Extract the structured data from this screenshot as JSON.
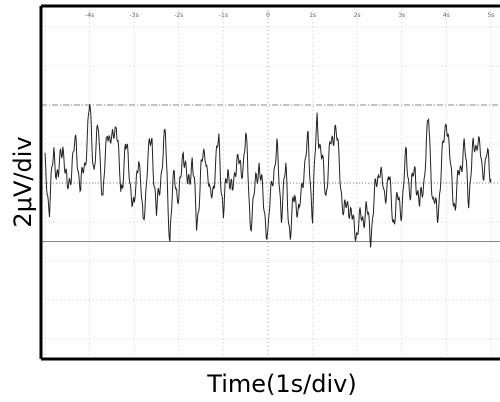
{
  "chart_data": {
    "type": "line",
    "title": "",
    "xlabel": "Time(1s/div)",
    "ylabel": "2μV/div",
    "x_tick_labels": [
      "-4s",
      "-3s",
      "-2s",
      "-1s",
      "0",
      "1s",
      "2s",
      "3s",
      "4s",
      "5s"
    ],
    "xlim": [
      -5,
      5
    ],
    "ylim": [
      -4,
      4
    ],
    "y_units": "div",
    "grid": true,
    "reference_levels": [
      {
        "y": 0,
        "style": "dotted"
      },
      {
        "y": 2,
        "style": "dash-dot"
      },
      {
        "y": -1.5,
        "style": "solid"
      }
    ],
    "series": [
      {
        "x": [
          -5.0,
          -4.9,
          -4.8,
          -4.7,
          -4.6,
          -4.5,
          -4.4,
          -4.3,
          -4.2,
          -4.1,
          -4.0,
          -3.9,
          -3.8,
          -3.7,
          -3.6,
          -3.5,
          -3.4,
          -3.3,
          -3.2,
          -3.1,
          -3.0,
          -2.9,
          -2.8,
          -2.7,
          -2.6,
          -2.5,
          -2.4,
          -2.3,
          -2.2,
          -2.1,
          -2.0,
          -1.9,
          -1.8,
          -1.7,
          -1.6,
          -1.5,
          -1.4,
          -1.3,
          -1.2,
          -1.1,
          -1.0,
          -0.9,
          -0.8,
          -0.7,
          -0.6,
          -0.5,
          -0.4,
          -0.3,
          -0.2,
          -0.1,
          0.0,
          0.1,
          0.2,
          0.3,
          0.4,
          0.5,
          0.6,
          0.7,
          0.8,
          0.9,
          1.0,
          1.1,
          1.2,
          1.3,
          1.4,
          1.5,
          1.6,
          1.7,
          1.8,
          1.9,
          2.0,
          2.1,
          2.2,
          2.3,
          2.4,
          2.5,
          2.6,
          2.7,
          2.8,
          2.9,
          3.0,
          3.1,
          3.2,
          3.3,
          3.4,
          3.5,
          3.6,
          3.7,
          3.8,
          3.9,
          4.0,
          4.1,
          4.2,
          4.3,
          4.4,
          4.5,
          4.6,
          4.7,
          4.8,
          4.9,
          5.0
        ],
        "values": [
          0.4,
          -0.6,
          0.8,
          0.1,
          1.1,
          -0.3,
          0.5,
          1.0,
          -0.2,
          0.6,
          1.9,
          0.4,
          1.4,
          -0.5,
          1.5,
          0.9,
          1.7,
          -0.4,
          1.0,
          0.2,
          -0.8,
          0.9,
          -1.2,
          0.6,
          1.1,
          -0.9,
          0.3,
          1.2,
          -1.5,
          0.4,
          -0.6,
          1.0,
          -0.2,
          0.7,
          -1.1,
          0.3,
          0.9,
          -0.5,
          0.2,
          1.1,
          -0.9,
          0.5,
          -0.4,
          0.8,
          0.1,
          1.3,
          -1.0,
          -0.3,
          0.6,
          -0.6,
          -1.3,
          0.2,
          0.8,
          -0.7,
          0.3,
          -1.4,
          -0.2,
          -0.9,
          0.4,
          1.0,
          -0.8,
          1.7,
          0.6,
          -0.2,
          0.9,
          1.5,
          0.5,
          -0.9,
          -0.4,
          -1.1,
          -1.2,
          -0.9,
          -0.7,
          -1.3,
          -0.3,
          0.5,
          -0.4,
          0.2,
          -0.9,
          -0.5,
          -0.6,
          0.7,
          -0.3,
          0.4,
          -0.7,
          0.2,
          1.6,
          -0.5,
          -0.8,
          0.5,
          1.8,
          0.2,
          -0.6,
          0.4,
          0.9,
          -0.3,
          0.8,
          1.2,
          0.3,
          0.7,
          0.1
        ]
      }
    ]
  }
}
